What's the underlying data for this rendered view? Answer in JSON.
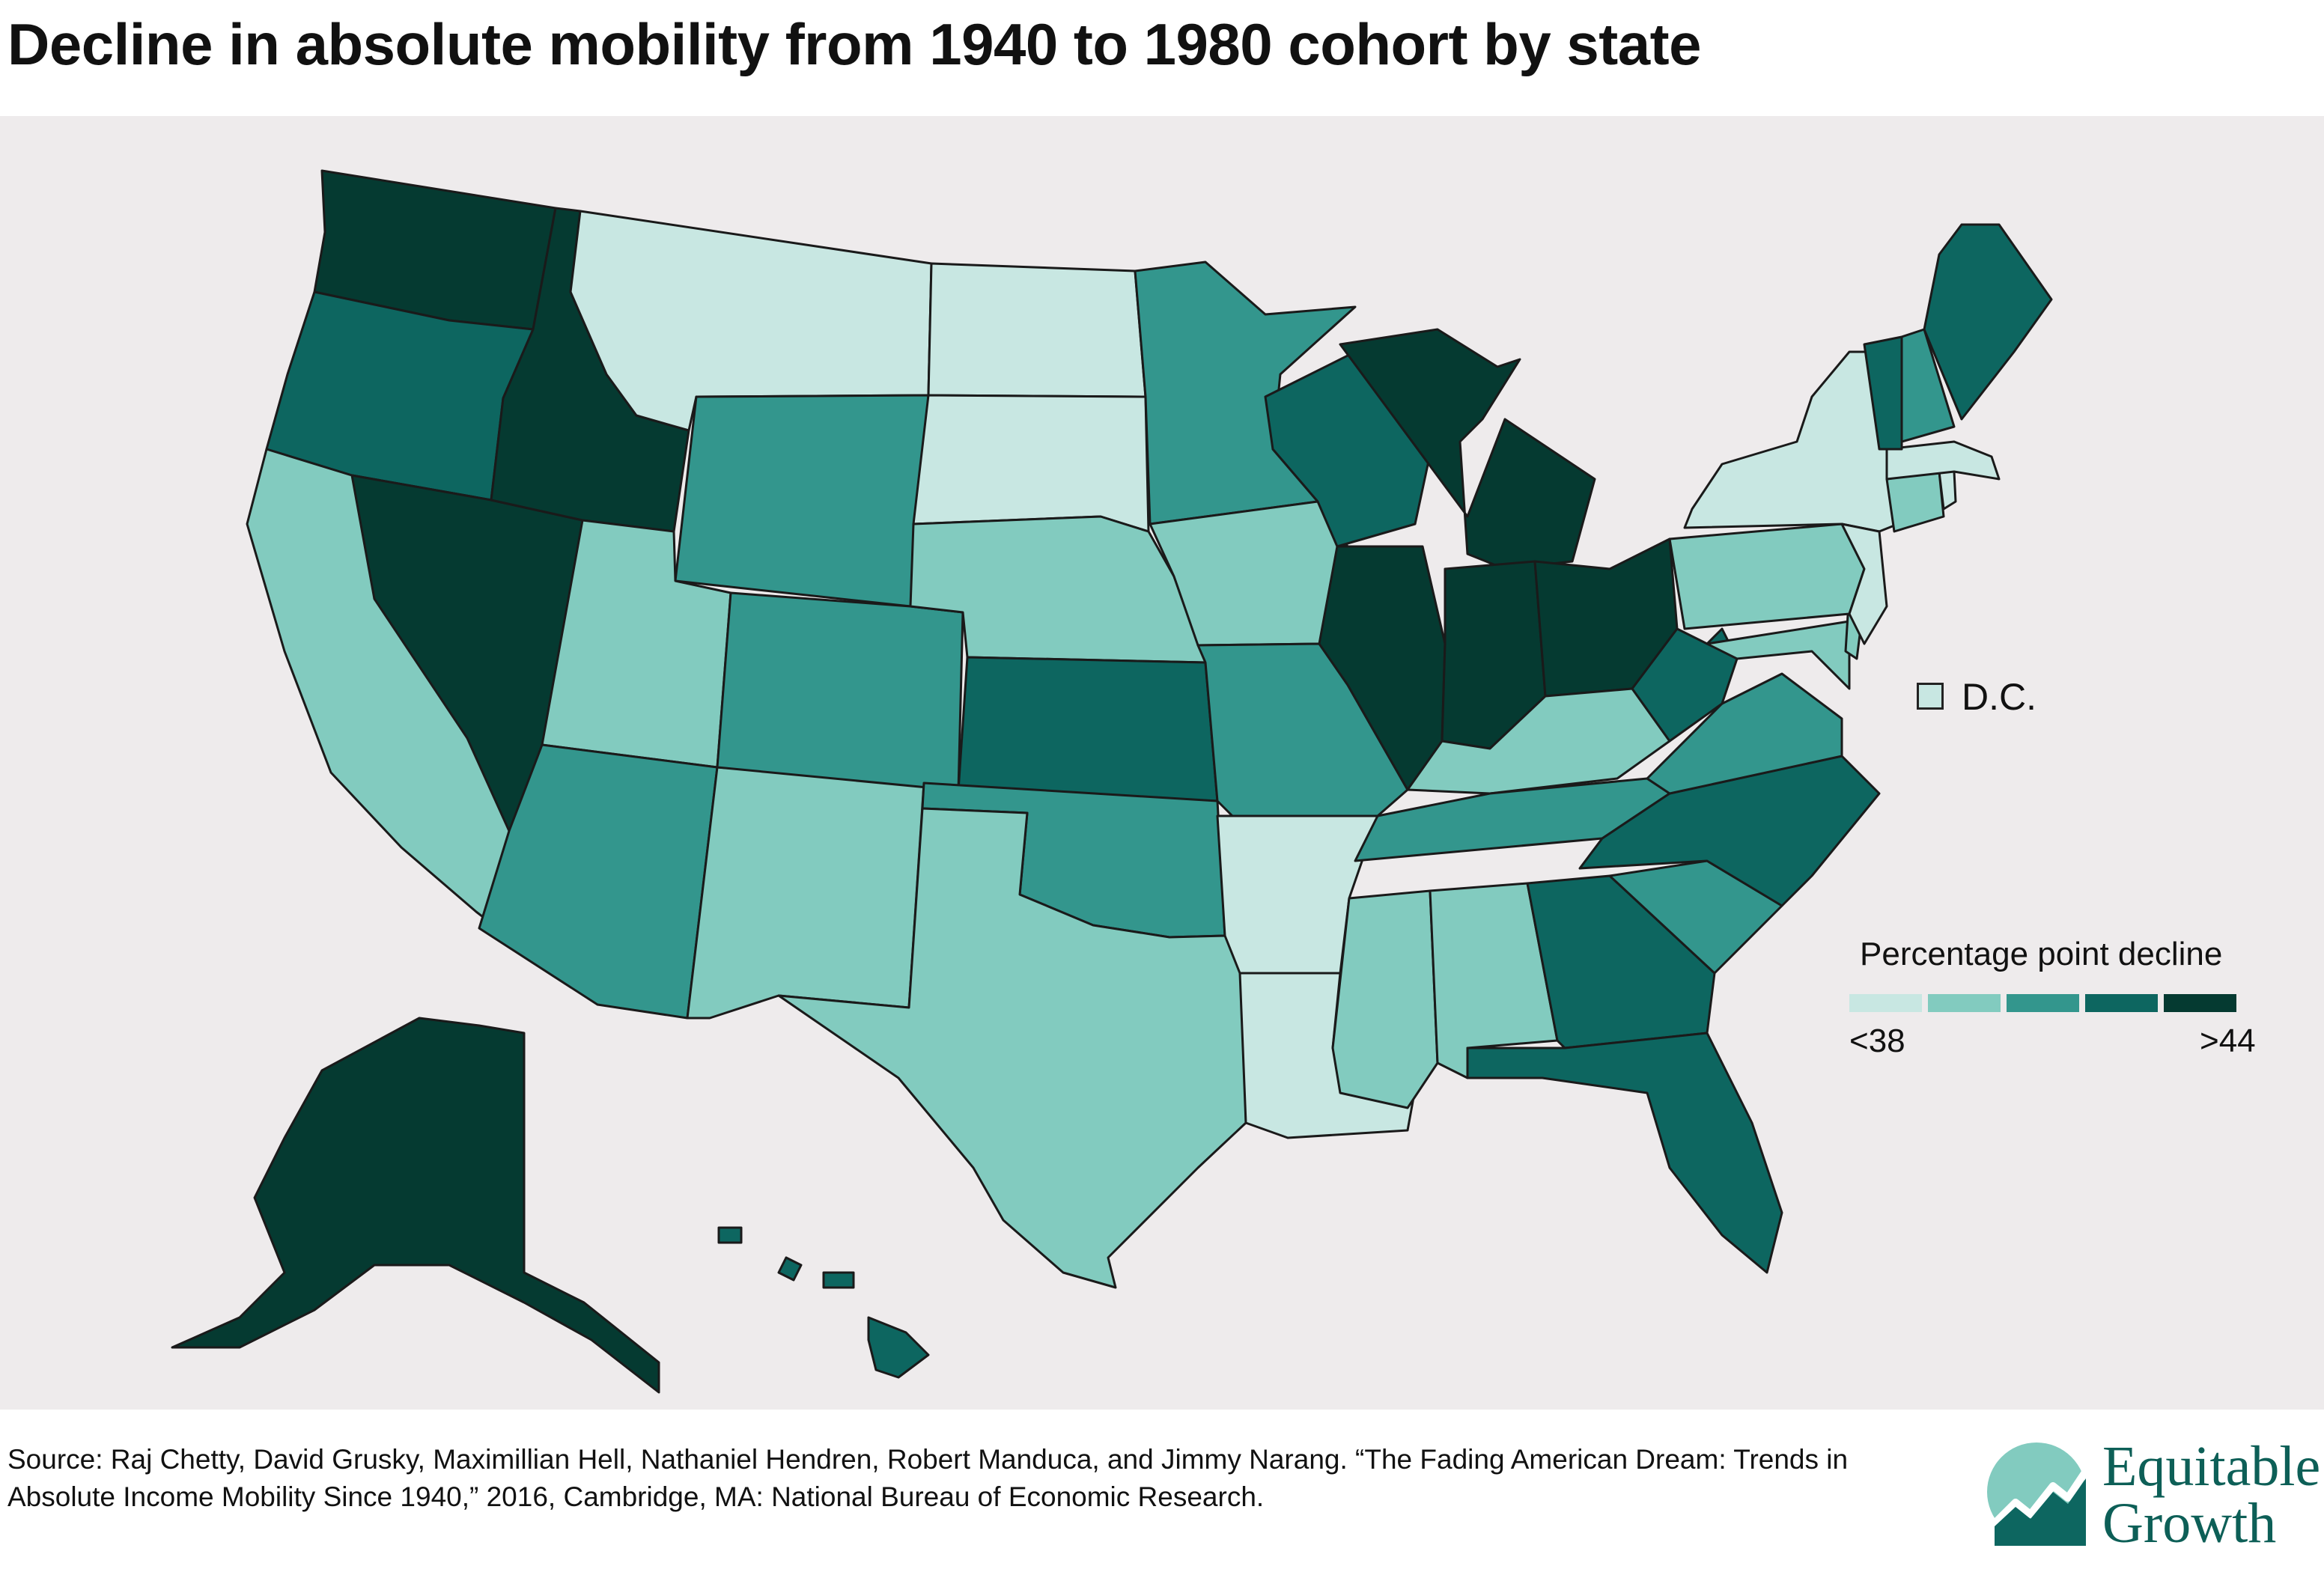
{
  "title": "Decline in absolute mobility from 1940 to 1980 cohort by state",
  "legend": {
    "title": "Percentage point decline",
    "low_label": "<38",
    "high_label": ">44",
    "colors": [
      "#c8e7e2",
      "#82cbbf",
      "#33968d",
      "#0d6660",
      "#053a31"
    ]
  },
  "dc": {
    "label": "D.C.",
    "class": 0
  },
  "source": "Source: Raj Chetty, David Grusky, Maximillian Hell, Nathaniel Hendren, Robert Manduca, and Jimmy Narang. “The Fading American Dream: Trends in Absolute Income Mobility Since 1940,” 2016, Cambridge, MA: National Bureau of Economic Research.",
  "logo": {
    "line1": "Equitable",
    "line2": "Growth"
  },
  "map_data": {
    "type": "choropleth",
    "value_classes": [
      "<38",
      "",
      "",
      "",
      ">44"
    ],
    "states": {
      "WA": 4,
      "OR": 3,
      "CA": 1,
      "NV": 4,
      "ID": 4,
      "MT": 0,
      "WY": 2,
      "UT": 1,
      "AZ": 2,
      "NM": 1,
      "CO": 2,
      "ND": 0,
      "SD": 0,
      "NE": 1,
      "KS": 3,
      "OK": 2,
      "TX": 1,
      "MN": 2,
      "IA": 1,
      "MO": 2,
      "AR": 0,
      "LA": 0,
      "WI": 3,
      "IL": 4,
      "MI": 4,
      "IN": 4,
      "OH": 4,
      "KY": 1,
      "TN": 2,
      "MS": 1,
      "AL": 1,
      "GA": 3,
      "FL": 3,
      "SC": 2,
      "NC": 3,
      "VA": 2,
      "WV": 3,
      "MD": 1,
      "DE": 1,
      "PA": 1,
      "NY": 0,
      "NJ": 0,
      "CT": 1,
      "RI": 0,
      "MA": 0,
      "VT": 3,
      "NH": 2,
      "ME": 3,
      "AK": 4,
      "HI": 3
    }
  }
}
